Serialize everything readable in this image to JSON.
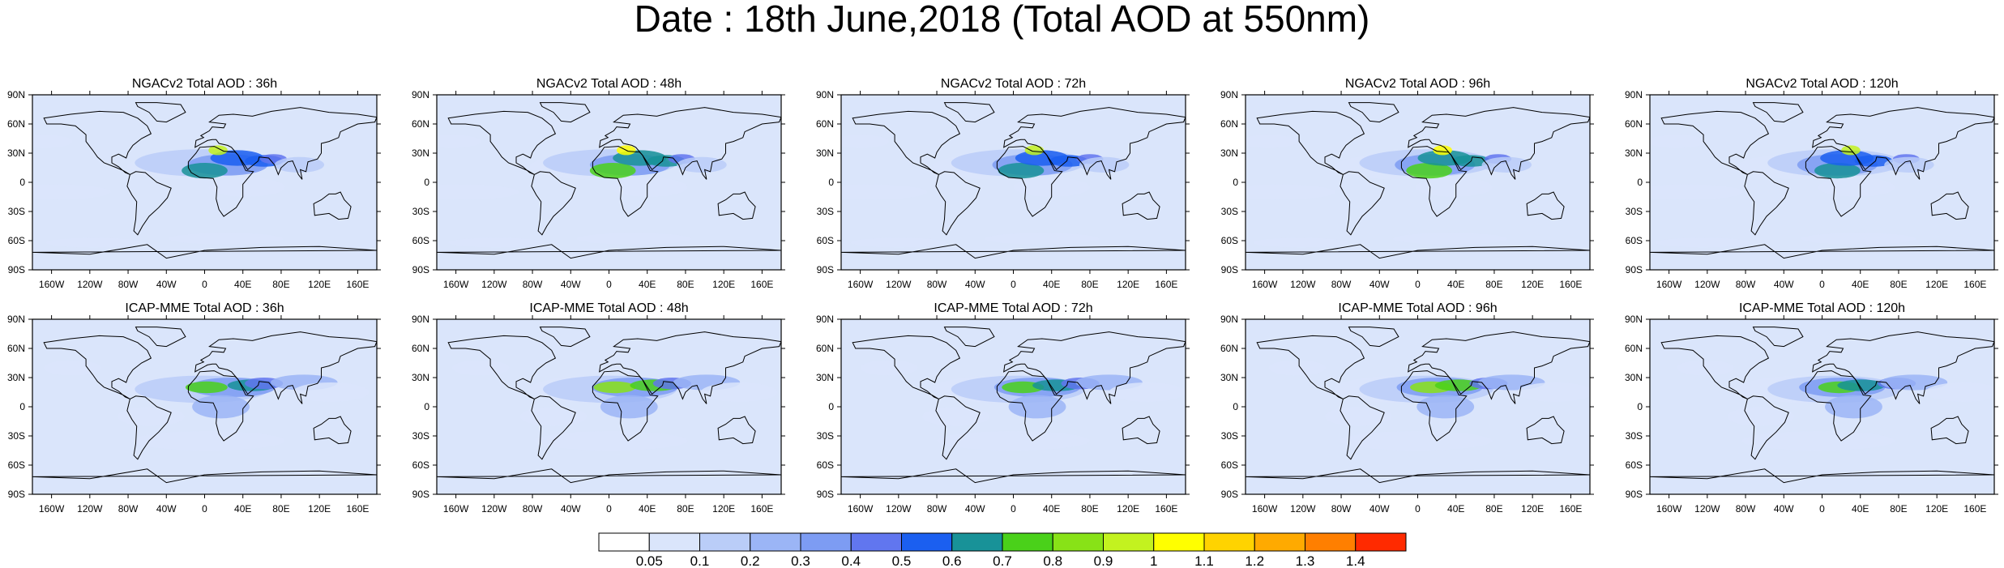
{
  "figure": {
    "title": "Date : 18th June,2018 (Total AOD at 550nm)"
  },
  "panel_titles": [
    [
      "NGACv2 Total AOD : 36h",
      "NGACv2 Total AOD : 48h",
      "NGACv2 Total AOD : 72h",
      "NGACv2 Total AOD : 96h",
      "NGACv2 Total AOD : 120h"
    ],
    [
      "ICAP-MME Total AOD : 36h",
      "ICAP-MME Total AOD : 48h",
      "ICAP-MME Total AOD : 72h",
      "ICAP-MME Total AOD : 96h",
      "ICAP-MME Total AOD : 120h"
    ]
  ],
  "axes": {
    "lat_labels": [
      "90N",
      "60N",
      "30N",
      "0",
      "30S",
      "60S",
      "90S"
    ],
    "lon_labels": [
      "160W",
      "120W",
      "80W",
      "40W",
      "0",
      "40E",
      "80E",
      "120E",
      "160E"
    ]
  },
  "colorbar": {
    "colors": [
      "#ffffff",
      "#dae5fb",
      "#bacdf8",
      "#9bb5f6",
      "#7d9cf3",
      "#6176ef",
      "#1b5ff0",
      "#189298",
      "#4ad11a",
      "#88e217",
      "#c3f21f",
      "#ffff00",
      "#ffd300",
      "#ffaa00",
      "#ff7f00",
      "#ff2a00"
    ],
    "tick_labels": [
      "0.05",
      "0.1",
      "0.2",
      "0.3",
      "0.4",
      "0.5",
      "0.6",
      "0.7",
      "0.8",
      "0.9",
      "1",
      "1.1",
      "1.2",
      "1.3",
      "1.4"
    ]
  }
}
